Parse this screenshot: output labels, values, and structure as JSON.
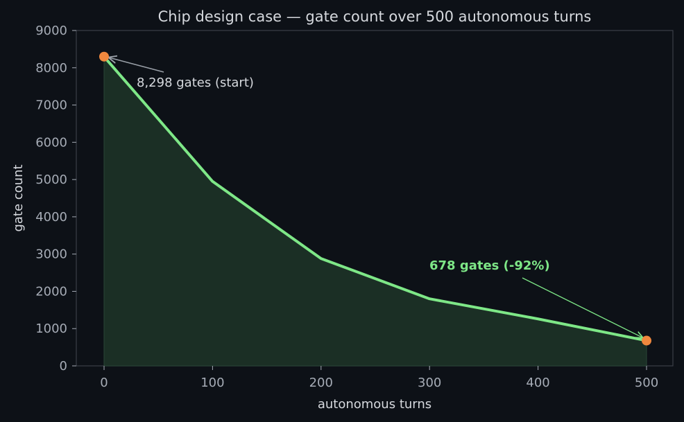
{
  "chart_data": {
    "type": "area",
    "title": "Chip design case — gate count over 500 autonomous turns",
    "xlabel": "autonomous turns",
    "ylabel": "gate count",
    "xlim": [
      -25,
      525
    ],
    "ylim": [
      0,
      9000
    ],
    "x_ticks": [
      0,
      100,
      200,
      300,
      400,
      500
    ],
    "y_ticks": [
      0,
      1000,
      2000,
      3000,
      4000,
      5000,
      6000,
      7000,
      8000,
      9000
    ],
    "grid": false,
    "series": [
      {
        "x": [
          0,
          100,
          200,
          300,
          400,
          500
        ],
        "values": [
          8298,
          4950,
          2880,
          1800,
          1260,
          678
        ]
      }
    ],
    "markers": [
      {
        "x": 0,
        "y": 8298
      },
      {
        "x": 500,
        "y": 678
      }
    ],
    "annotations": [
      {
        "text": "8,298 gates (start)",
        "x": 0,
        "y": 8298
      },
      {
        "text": "678 gates (-92%)",
        "x": 500,
        "y": 678
      }
    ],
    "colors": {
      "background": "#0d1117",
      "line": "#7ee787",
      "fill": "#1b2f25",
      "marker": "#f0883e",
      "axis": "#3a3f47",
      "start_arrow": "#9aa0a8",
      "end_annotation": "#7ee787"
    }
  }
}
